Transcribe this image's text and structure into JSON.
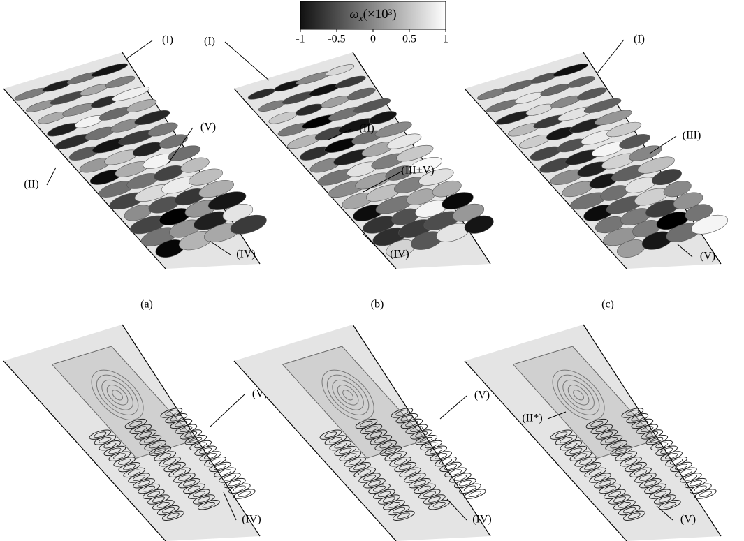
{
  "colorbar": {
    "symbol": "ω",
    "subscript": "x",
    "unit": "(×10³)",
    "ticks": [
      -1,
      -0.5,
      0,
      0.5,
      1
    ]
  },
  "panels": [
    {
      "label": "(a)",
      "annotations": [
        "(I)",
        "(II)",
        "(V)",
        "(IV)"
      ]
    },
    {
      "label": "(b)",
      "annotations": [
        "(I)",
        "(II)",
        "(III+V)",
        "(IV)"
      ]
    },
    {
      "label": "(c)",
      "annotations": [
        "(I)",
        "(III)",
        "(V)"
      ]
    },
    {
      "annotations": [
        "(V)",
        "(IV)"
      ]
    },
    {
      "annotations": [
        "(V)",
        "(IV)"
      ]
    },
    {
      "annotations": [
        "(II*)",
        "(V)"
      ]
    }
  ]
}
